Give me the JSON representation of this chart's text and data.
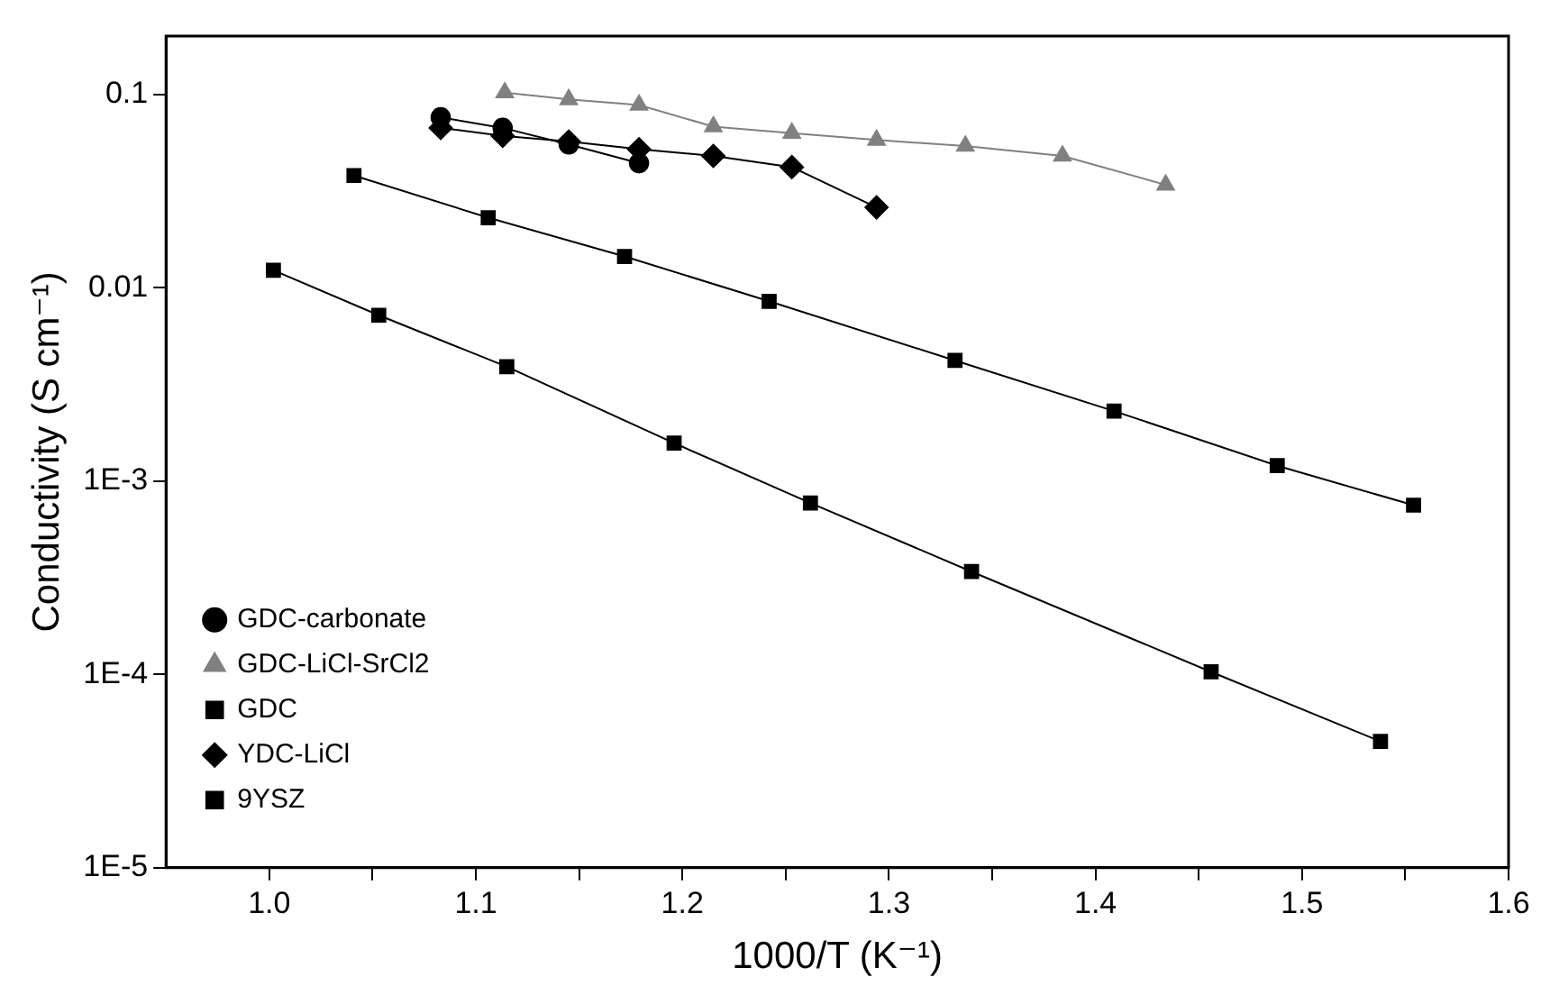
{
  "chart_data": {
    "type": "line",
    "xlabel": "1000/T (K⁻¹)",
    "ylabel": "Conductivity (S cm⁻¹)",
    "log": "y",
    "grid": false,
    "legend": "bottom left",
    "line_style": "solid",
    "xlim": [
      0.95,
      1.6
    ],
    "xticks": [
      {
        "value": 1.0,
        "label": "1.0"
      },
      {
        "value": 1.05,
        "label": null
      },
      {
        "value": 1.1,
        "label": "1.1"
      },
      {
        "value": 1.15,
        "label": null
      },
      {
        "value": 1.2,
        "label": "1.2"
      },
      {
        "value": 1.25,
        "label": null
      },
      {
        "value": 1.3,
        "label": "1.3"
      },
      {
        "value": 1.35,
        "label": null
      },
      {
        "value": 1.4,
        "label": "1.4"
      },
      {
        "value": 1.45,
        "label": null
      },
      {
        "value": 1.5,
        "label": "1.5"
      },
      {
        "value": 1.55,
        "label": null
      },
      {
        "value": 1.6,
        "label": "1.6"
      }
    ],
    "ylim": [
      1e-05,
      0.2
    ],
    "yticks": [
      {
        "value": 1e-05,
        "label": "1E-5"
      },
      {
        "value": 0.0001,
        "label": "1E-4"
      },
      {
        "value": 0.001,
        "label": "1E-3"
      },
      {
        "value": 0.01,
        "label": "0.01"
      },
      {
        "value": 0.1,
        "label": "0.1"
      }
    ],
    "series": [
      {
        "name": "GDC-carbonate",
        "color": "#000000",
        "marker": "circle",
        "x": [
          1.083,
          1.113,
          1.145,
          1.179
        ],
        "values": [
          0.076,
          0.067,
          0.055,
          0.044
        ]
      },
      {
        "name": "GDC-LiCl-SrCl2",
        "color": "#808080",
        "marker": "triangle",
        "x": [
          1.114,
          1.145,
          1.179,
          1.215,
          1.253,
          1.294,
          1.337,
          1.384,
          1.434
        ],
        "values": [
          0.102,
          0.094,
          0.088,
          0.068,
          0.063,
          0.058,
          0.054,
          0.048,
          0.034
        ]
      },
      {
        "name": "GDC",
        "color": "#000000",
        "marker": "square",
        "x": [
          1.041,
          1.106,
          1.172,
          1.242,
          1.332,
          1.409,
          1.488,
          1.554
        ],
        "values": [
          0.038,
          0.023,
          0.0145,
          0.0085,
          0.0042,
          0.0023,
          0.0012,
          0.00075
        ]
      },
      {
        "name": "YDC-LiCl",
        "color": "#000000",
        "marker": "diamond",
        "x": [
          1.083,
          1.113,
          1.145,
          1.179,
          1.215,
          1.253,
          1.294
        ],
        "values": [
          0.067,
          0.061,
          0.057,
          0.052,
          0.048,
          0.042,
          0.026
        ]
      },
      {
        "name": "9YSZ",
        "color": "#000000",
        "marker": "square",
        "x": [
          1.002,
          1.053,
          1.115,
          1.196,
          1.262,
          1.34,
          1.456,
          1.538
        ],
        "values": [
          0.0123,
          0.0072,
          0.0039,
          0.00157,
          0.00077,
          0.00034,
          0.000103,
          4.5e-05
        ]
      }
    ]
  }
}
